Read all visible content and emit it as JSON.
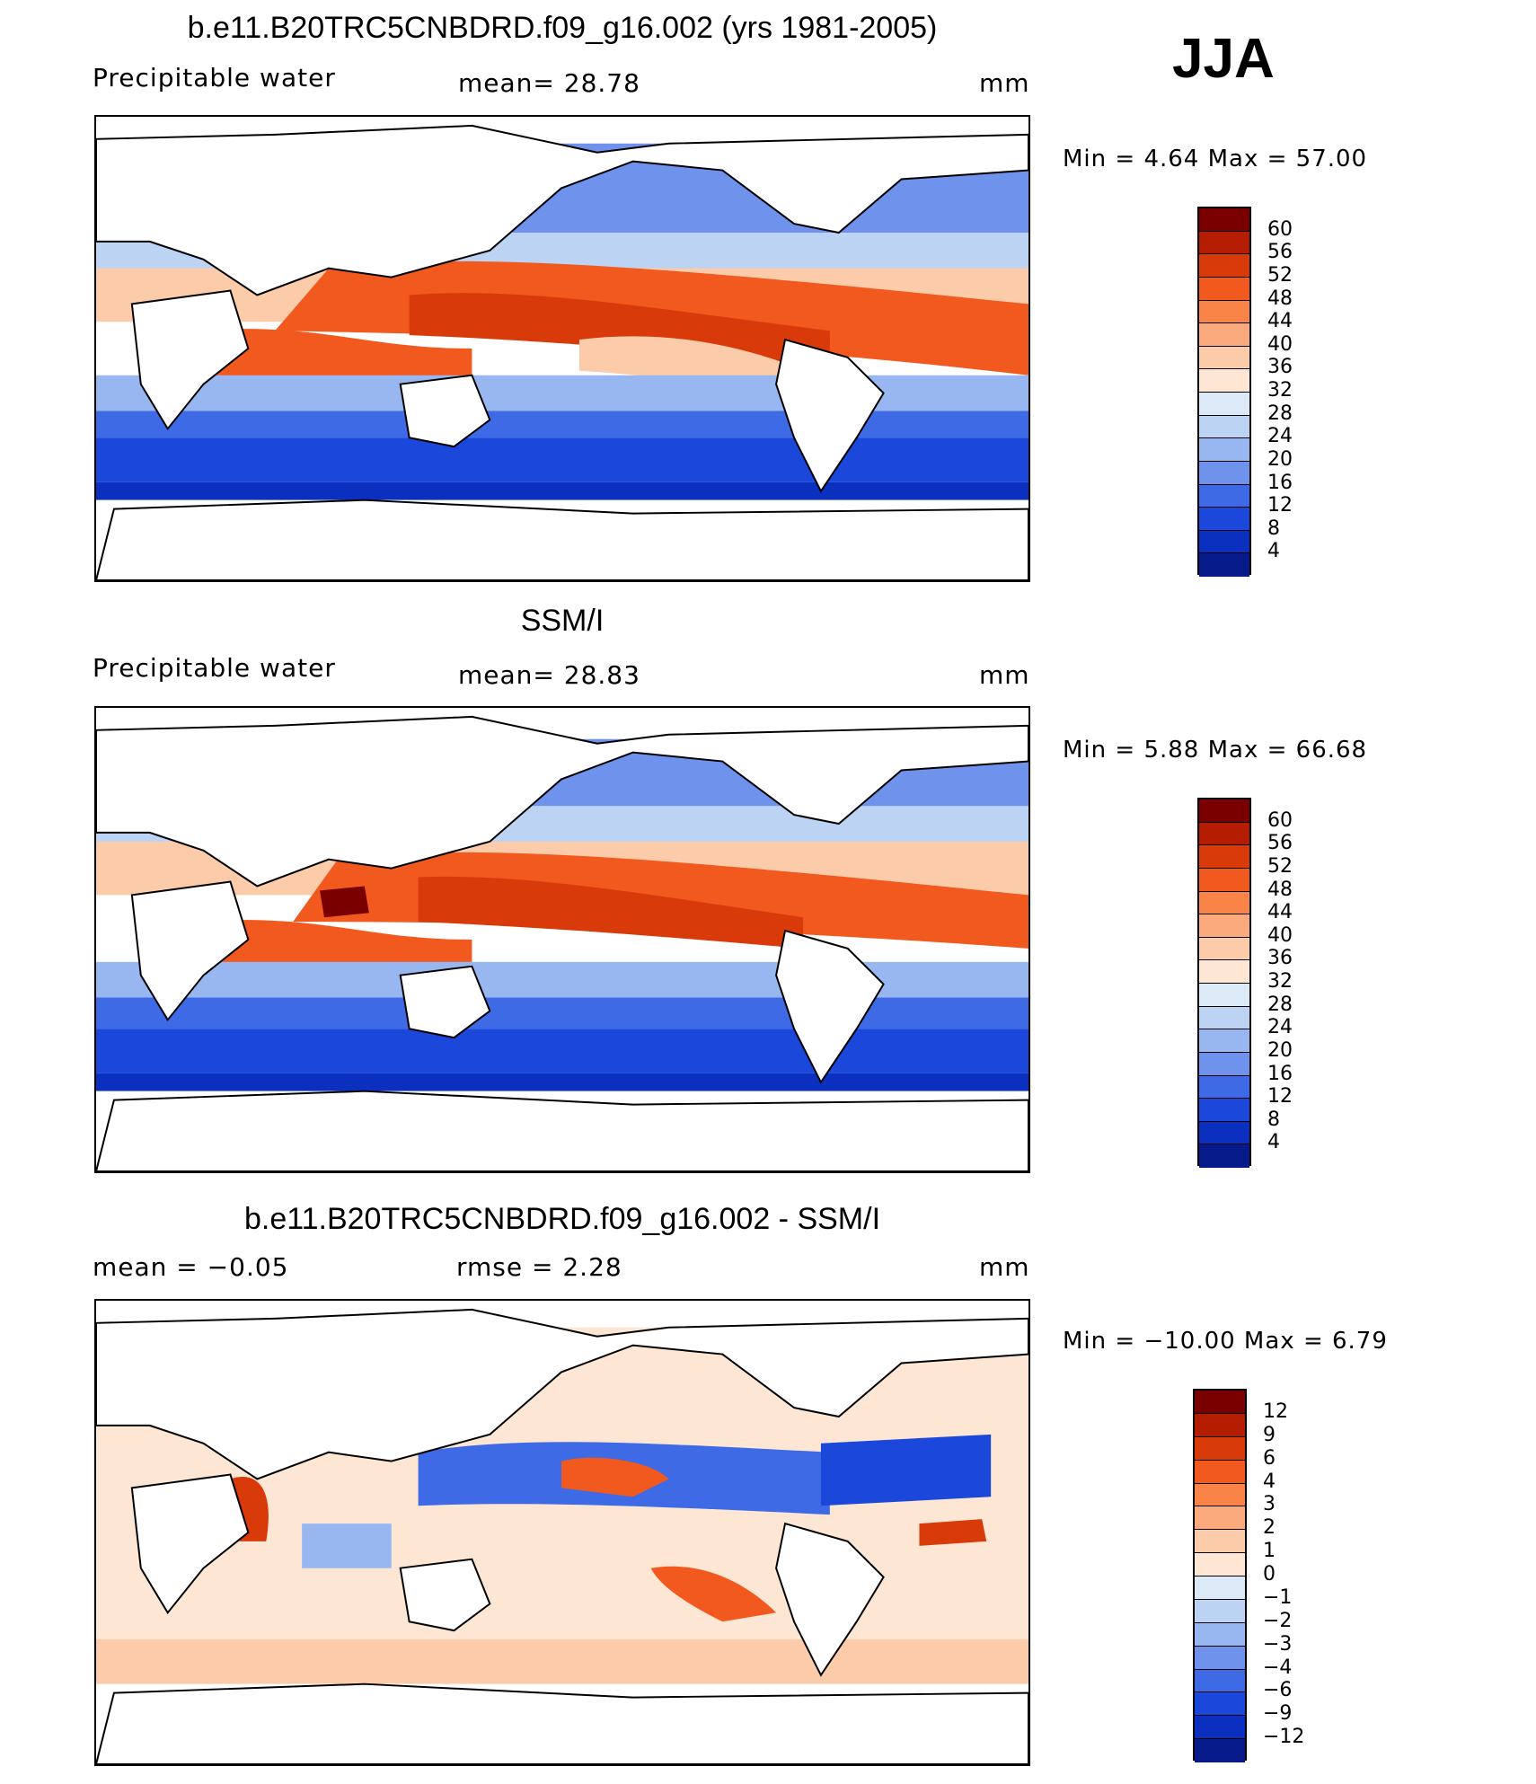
{
  "season": "JJA",
  "panels": [
    {
      "title": "b.e11.B20TRC5CNBDRD.f09_g16.002 (yrs 1981-2005)",
      "variable": "Precipitable water",
      "stat_left": "",
      "stat_mid": "mean=   28.78",
      "units": "mm",
      "minmax": "Min  =     4.64  Max  =    57.00"
    },
    {
      "title": "SSM/I",
      "variable": "Precipitable water",
      "stat_left": "",
      "stat_mid": "mean=   28.83",
      "units": "mm",
      "minmax": "Min  =     5.88  Max  =    66.68"
    },
    {
      "title": "b.e11.B20TRC5CNBDRD.f09_g16.002 - SSM/I",
      "variable": "",
      "stat_left": "mean  =   −0.05",
      "stat_mid": "rmse  =     2.28",
      "units": "mm",
      "minmax": "Min  = −10.00  Max  =     6.79"
    }
  ],
  "colorbars": [
    {
      "labels": [
        "60",
        "56",
        "52",
        "48",
        "44",
        "40",
        "36",
        "32",
        "28",
        "24",
        "20",
        "16",
        "12",
        "8",
        "4"
      ],
      "colors": [
        "#7a0000",
        "#b41d00",
        "#d93a0a",
        "#f2591f",
        "#fa8448",
        "#fbaa7e",
        "#fccbaa",
        "#fde6d3",
        "#dce9f7",
        "#bcd3f3",
        "#98b6f0",
        "#6f93ec",
        "#3f6ae6",
        "#1b48db",
        "#0b2fbe",
        "#061a8a"
      ]
    },
    {
      "labels": [
        "60",
        "56",
        "52",
        "48",
        "44",
        "40",
        "36",
        "32",
        "28",
        "24",
        "20",
        "16",
        "12",
        "8",
        "4"
      ],
      "colors": [
        "#7a0000",
        "#b41d00",
        "#d93a0a",
        "#f2591f",
        "#fa8448",
        "#fbaa7e",
        "#fccbaa",
        "#fde6d3",
        "#dce9f7",
        "#bcd3f3",
        "#98b6f0",
        "#6f93ec",
        "#3f6ae6",
        "#1b48db",
        "#0b2fbe",
        "#061a8a"
      ]
    },
    {
      "labels": [
        "12",
        "9",
        "6",
        "4",
        "3",
        "2",
        "1",
        "0",
        "−1",
        "−2",
        "−3",
        "−4",
        "−6",
        "−9",
        "−12"
      ],
      "colors": [
        "#7a0000",
        "#b41d00",
        "#d93a0a",
        "#f2591f",
        "#fa8448",
        "#fbaa7e",
        "#fccbaa",
        "#fde6d3",
        "#dce9f7",
        "#bcd3f3",
        "#98b6f0",
        "#6f93ec",
        "#3f6ae6",
        "#1b48db",
        "#0b2fbe",
        "#061a8a"
      ]
    }
  ]
}
